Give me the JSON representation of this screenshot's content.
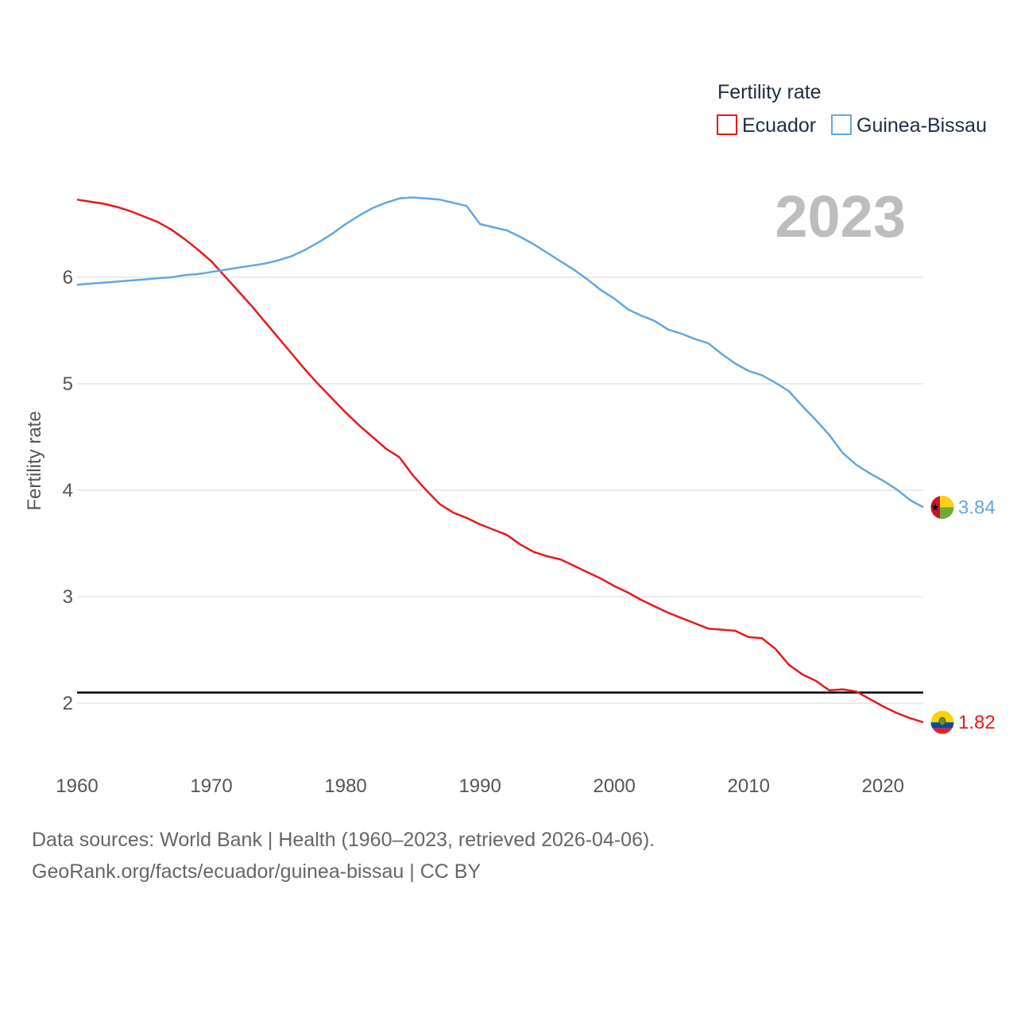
{
  "chart_data": {
    "type": "line",
    "legend_title": "Fertility rate",
    "ylabel": "Fertility rate",
    "current_year": "2023",
    "xlim": [
      1960,
      2023
    ],
    "ylim": [
      1.5,
      7.0
    ],
    "x_ticks": [
      1960,
      1970,
      1980,
      1990,
      2000,
      2010,
      2020
    ],
    "y_ticks": [
      2,
      3,
      4,
      5,
      6
    ],
    "reference_line": {
      "y": 2.1
    },
    "x": [
      1960,
      1961,
      1962,
      1963,
      1964,
      1965,
      1966,
      1967,
      1968,
      1969,
      1970,
      1971,
      1972,
      1973,
      1974,
      1975,
      1976,
      1977,
      1978,
      1979,
      1980,
      1981,
      1982,
      1983,
      1984,
      1985,
      1986,
      1987,
      1988,
      1989,
      1990,
      1991,
      1992,
      1993,
      1994,
      1995,
      1996,
      1997,
      1998,
      1999,
      2000,
      2001,
      2002,
      2003,
      2004,
      2005,
      2006,
      2007,
      2008,
      2009,
      2010,
      2011,
      2012,
      2013,
      2014,
      2015,
      2016,
      2017,
      2018,
      2019,
      2020,
      2021,
      2022,
      2023
    ],
    "series": [
      {
        "name": "Ecuador",
        "color": "#e8191b",
        "end_label": "1.82",
        "flag": "ecuador-flag-icon",
        "values": [
          6.73,
          6.71,
          6.69,
          6.66,
          6.62,
          6.57,
          6.52,
          6.45,
          6.36,
          6.26,
          6.15,
          6.01,
          5.87,
          5.73,
          5.58,
          5.43,
          5.28,
          5.13,
          4.99,
          4.86,
          4.73,
          4.61,
          4.5,
          4.39,
          4.31,
          4.14,
          4.0,
          3.87,
          3.79,
          3.74,
          3.68,
          3.63,
          3.58,
          3.49,
          3.42,
          3.38,
          3.35,
          3.29,
          3.23,
          3.17,
          3.1,
          3.04,
          2.97,
          2.91,
          2.85,
          2.8,
          2.75,
          2.7,
          2.69,
          2.68,
          2.62,
          2.61,
          2.51,
          2.36,
          2.27,
          2.21,
          2.12,
          2.13,
          2.11,
          2.04,
          1.97,
          1.91,
          1.86,
          1.82
        ]
      },
      {
        "name": "Guinea-Bissau",
        "color": "#62a7e2",
        "end_label": "3.84",
        "flag": "guinea-bissau-flag-icon",
        "values": [
          5.93,
          5.94,
          5.95,
          5.96,
          5.97,
          5.98,
          5.99,
          6.0,
          6.02,
          6.03,
          6.05,
          6.07,
          6.09,
          6.11,
          6.13,
          6.16,
          6.2,
          6.26,
          6.33,
          6.41,
          6.5,
          6.58,
          6.65,
          6.7,
          6.74,
          6.75,
          6.74,
          6.73,
          6.7,
          6.67,
          6.5,
          6.47,
          6.44,
          6.38,
          6.31,
          6.23,
          6.15,
          6.07,
          5.98,
          5.88,
          5.8,
          5.7,
          5.64,
          5.59,
          5.51,
          5.47,
          5.42,
          5.38,
          5.28,
          5.19,
          5.12,
          5.08,
          5.01,
          4.93,
          4.79,
          4.66,
          4.52,
          4.35,
          4.24,
          4.16,
          4.09,
          4.01,
          3.91,
          3.84
        ]
      }
    ]
  },
  "source": {
    "line1": "Data sources: World Bank | Health (1960–2023, retrieved 2026-04-06).",
    "line2": "GeoRank.org/facts/ecuador/guinea-bissau | CC BY"
  }
}
